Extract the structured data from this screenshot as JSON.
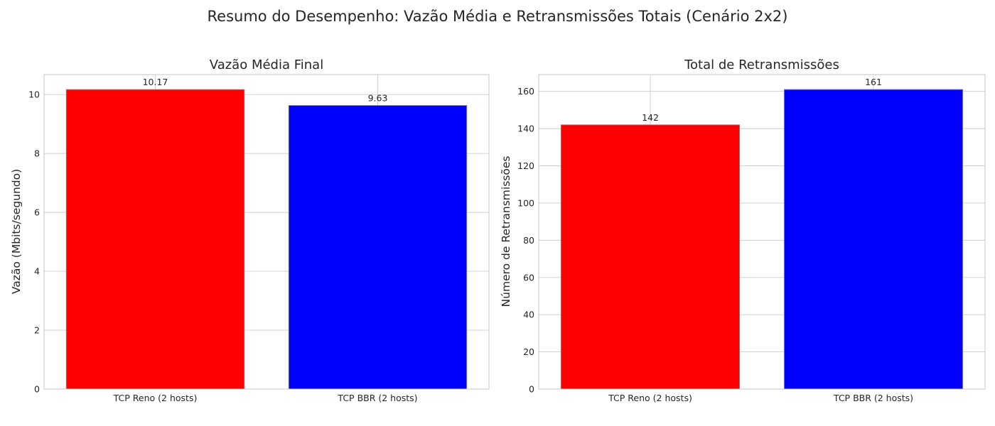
{
  "figure": {
    "suptitle": "Resumo do Desempenho: Vazão Média e Retransmissões Totais (Cenário 2x2)"
  },
  "chart_data": [
    {
      "type": "bar",
      "title": "Vazão Média Final",
      "xlabel": "",
      "ylabel": "Vazão (Mbits/segundo)",
      "categories": [
        "TCP Reno (2 hosts)",
        "TCP BBR (2 hosts)"
      ],
      "values": [
        10.17,
        9.63
      ],
      "value_labels": [
        "10.17",
        "9.63"
      ],
      "colors": [
        "#ff0000",
        "#0000ff"
      ],
      "ylim": [
        0,
        10.68
      ],
      "yticks": [
        0,
        2,
        4,
        6,
        8,
        10
      ],
      "grid": true
    },
    {
      "type": "bar",
      "title": "Total de Retransmissões",
      "xlabel": "",
      "ylabel": "Número de Retransmissões",
      "categories": [
        "TCP Reno (2 hosts)",
        "TCP BBR (2 hosts)"
      ],
      "values": [
        142,
        161
      ],
      "value_labels": [
        "142",
        "161"
      ],
      "colors": [
        "#ff0000",
        "#0000ff"
      ],
      "ylim": [
        0,
        169.05
      ],
      "yticks": [
        0,
        20,
        40,
        60,
        80,
        100,
        120,
        140,
        160
      ],
      "grid": true
    }
  ]
}
